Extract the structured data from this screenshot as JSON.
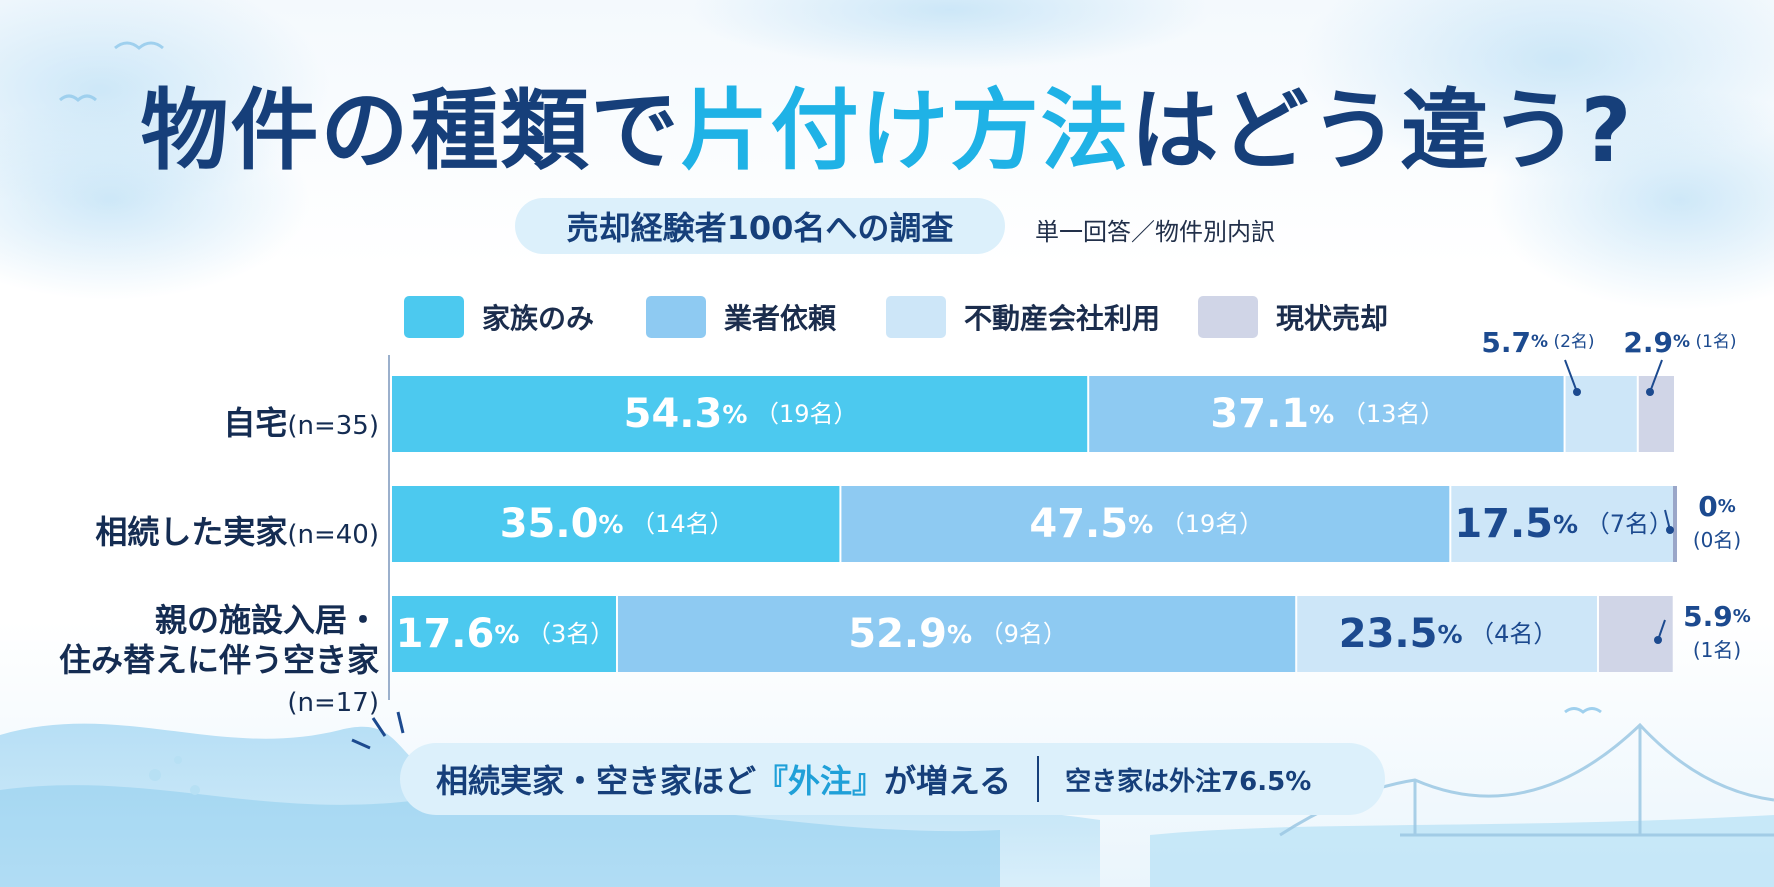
{
  "title": {
    "part1": "物件の種類で",
    "part2": "片付け方法",
    "part3": "はどう違う?"
  },
  "subtitle": "売却経験者100名への調査",
  "subnote": "単一回答／物件別内訳",
  "colors": {
    "家族のみ": "#4cc9ef",
    "業者依頼": "#8ecaf2",
    "不動産会社利用": "#cde6f8",
    "現状売却": "#d0d5e7",
    "label_dark": "#1c4a8f"
  },
  "chart_data": {
    "type": "bar",
    "orientation": "horizontal-stacked-100",
    "legend_placement": "top",
    "series_names": [
      "家族のみ",
      "業者依頼",
      "不動産会社利用",
      "現状売却"
    ],
    "categories": [
      {
        "label": "自宅",
        "label_line2": "",
        "n": "(n=35)"
      },
      {
        "label": "相続した実家",
        "label_line2": "",
        "n": "(n=40)"
      },
      {
        "label": "親の施設入居・",
        "label_line2": "住み替えに伴う空き家",
        "n": "(n=17)"
      }
    ],
    "values": [
      [
        54.3,
        37.1,
        5.7,
        2.9
      ],
      [
        35.0,
        47.5,
        17.5,
        0
      ],
      [
        17.6,
        52.9,
        23.5,
        5.9
      ]
    ],
    "counts": [
      [
        19,
        13,
        2,
        1
      ],
      [
        14,
        19,
        7,
        0
      ],
      [
        3,
        9,
        4,
        1
      ]
    ],
    "segment_labels": [
      [
        {
          "pct": "54.3",
          "cnt": "（19名）",
          "inside": true
        },
        {
          "pct": "37.1",
          "cnt": "（13名）",
          "inside": true
        },
        {
          "pct": "5.7",
          "cnt": "(2名)",
          "inside": false
        },
        {
          "pct": "2.9",
          "cnt": "(1名)",
          "inside": false
        }
      ],
      [
        {
          "pct": "35.0",
          "cnt": "（14名）",
          "inside": true
        },
        {
          "pct": "47.5",
          "cnt": "（19名）",
          "inside": true
        },
        {
          "pct": "17.5",
          "cnt": "（7名）",
          "inside": true
        },
        {
          "pct": "0",
          "cnt": "(0名)",
          "inside": false
        }
      ],
      [
        {
          "pct": "17.6",
          "cnt": "（3名）",
          "inside": true
        },
        {
          "pct": "52.9",
          "cnt": "（9名）",
          "inside": true
        },
        {
          "pct": "23.5",
          "cnt": "（4名）",
          "inside": true
        },
        {
          "pct": "5.9",
          "cnt": "(1名)",
          "inside": false
        }
      ]
    ],
    "percent_sign": "%",
    "xlim": [
      0,
      100
    ]
  },
  "footer": {
    "part1": "相続実家・空き家ほど",
    "part2": "『外注』",
    "part3": "が増える",
    "sub": "空き家は外注76.5%"
  }
}
